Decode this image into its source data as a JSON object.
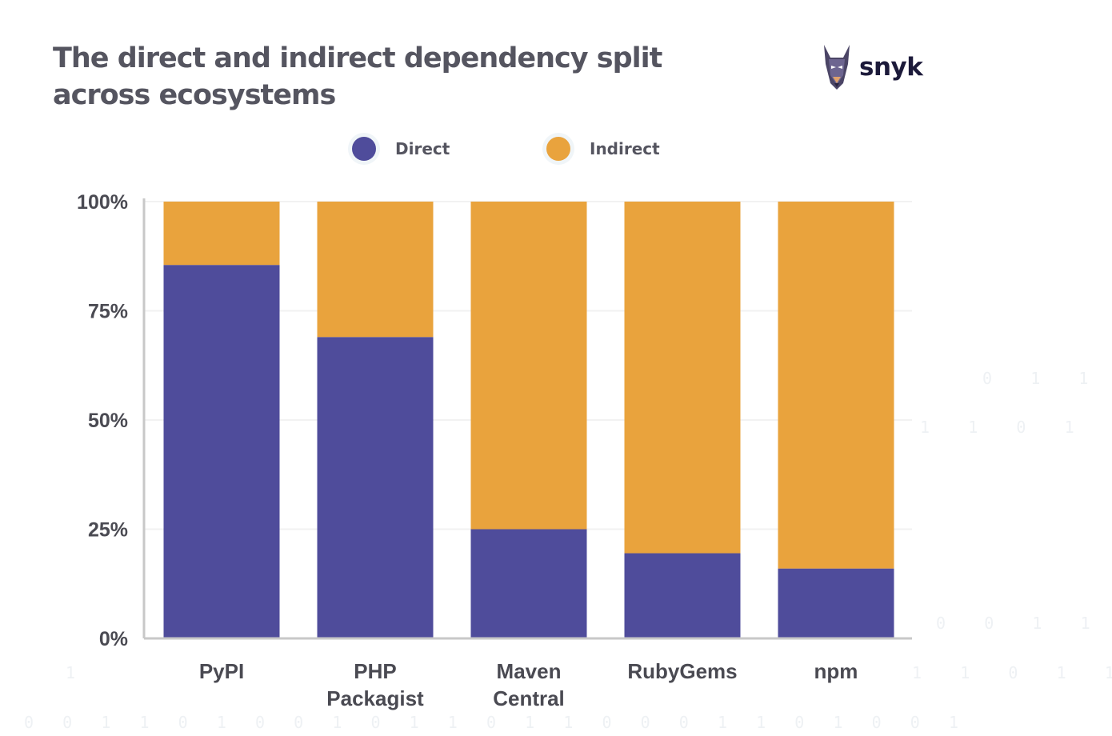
{
  "title": "The direct and indirect dependency split across ecosystems",
  "brand": "snyk",
  "legend": [
    {
      "label": "Direct",
      "color": "#4f4c9b"
    },
    {
      "label": "Indirect",
      "color": "#e9a33d"
    }
  ],
  "chart_data": {
    "type": "bar",
    "stacked": true,
    "title": "The direct and indirect dependency split across ecosystems",
    "categories": [
      "PyPI",
      "PHP Packagist",
      "Maven Central",
      "RubyGems",
      "npm"
    ],
    "series": [
      {
        "name": "Direct",
        "color": "#4f4c9b",
        "values": [
          85.5,
          69,
          25,
          19.5,
          16
        ]
      },
      {
        "name": "Indirect",
        "color": "#e9a33d",
        "values": [
          14.5,
          31,
          75,
          80.5,
          84
        ]
      }
    ],
    "yticks": [
      "0%",
      "25%",
      "50%",
      "75%",
      "100%"
    ],
    "ylim": [
      0,
      100
    ],
    "xlabel": "",
    "ylabel": "",
    "legend_position": "top-center",
    "grid": true
  }
}
